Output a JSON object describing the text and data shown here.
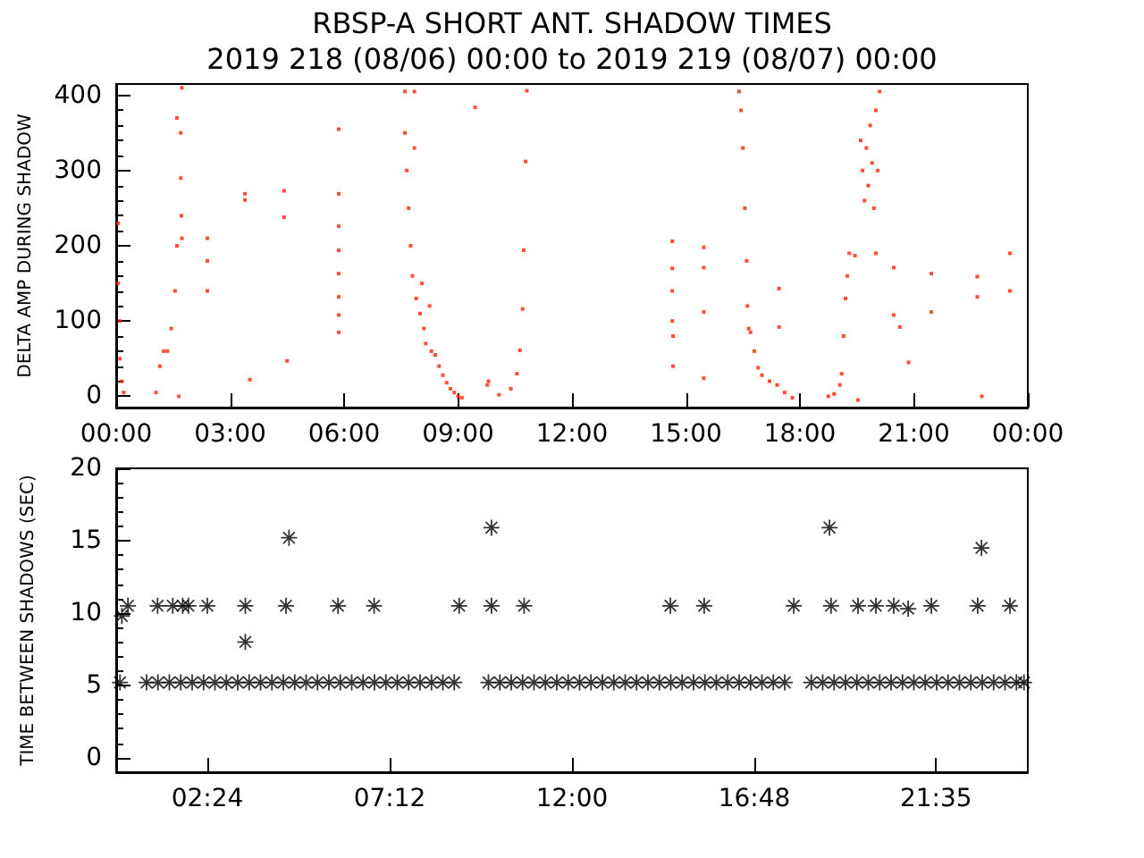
{
  "chart_data": [
    {
      "type": "scatter",
      "title": "RBSP-A SHORT ANT. SHADOW TIMES",
      "subtitle": "2019 218 (08/06) 00:00 to 2019 219 (08/07) 00:00",
      "ylabel": "DELTA AMP DURING SHADOW",
      "color": "#ff2200",
      "marker": "square",
      "grid": false,
      "xlim": [
        0,
        24
      ],
      "xticks": [
        {
          "value": 0,
          "label": "00:00"
        },
        {
          "value": 3,
          "label": "03:00"
        },
        {
          "value": 6,
          "label": "06:00"
        },
        {
          "value": 9,
          "label": "09:00"
        },
        {
          "value": 12,
          "label": "12:00"
        },
        {
          "value": 15,
          "label": "15:00"
        },
        {
          "value": 18,
          "label": "18:00"
        },
        {
          "value": 21,
          "label": "21:00"
        },
        {
          "value": 24,
          "label": "00:00"
        }
      ],
      "ylim": [
        -15,
        415
      ],
      "yticks": [
        0,
        100,
        200,
        300,
        400
      ],
      "x": [
        0.05,
        0.05,
        0.1,
        0.1,
        0.15,
        0.2,
        1.05,
        1.15,
        1.25,
        1.35,
        1.45,
        1.55,
        1.6,
        1.6,
        1.65,
        1.7,
        1.7,
        1.72,
        1.73,
        1.73,
        2.4,
        2.4,
        2.4,
        3.39,
        3.39,
        3.52,
        4.42,
        4.42,
        4.5,
        5.86,
        5.86,
        5.86,
        5.86,
        5.86,
        5.86,
        5.86,
        5.86,
        7.6,
        7.6,
        7.65,
        7.7,
        7.75,
        7.8,
        7.85,
        7.85,
        7.9,
        8.0,
        8.05,
        8.1,
        8.15,
        8.25,
        8.3,
        8.4,
        8.5,
        8.6,
        8.7,
        8.8,
        8.9,
        9.0,
        9.1,
        9.45,
        9.77,
        9.8,
        10.08,
        10.39,
        10.55,
        10.63,
        10.7,
        10.73,
        10.78,
        10.81,
        14.64,
        14.64,
        14.64,
        14.64,
        14.66,
        14.66,
        15.47,
        15.47,
        15.47,
        15.47,
        16.4,
        16.45,
        16.5,
        16.55,
        16.6,
        16.62,
        16.65,
        16.7,
        16.8,
        16.9,
        17.0,
        17.2,
        17.4,
        17.6,
        17.8,
        17.45,
        17.45,
        18.75,
        18.9,
        19.05,
        19.1,
        19.15,
        19.2,
        19.25,
        19.3,
        19.45,
        19.53,
        19.6,
        19.65,
        19.7,
        19.75,
        19.8,
        19.85,
        19.9,
        19.95,
        20.0,
        20.05,
        20.1,
        20.0,
        20.47,
        20.47,
        20.63,
        20.86,
        21.46,
        21.46,
        22.67,
        22.67,
        22.79,
        23.53,
        23.53
      ],
      "values": [
        150,
        230,
        100,
        50,
        20,
        5,
        5,
        40,
        60,
        60,
        90,
        140,
        200,
        370,
        0,
        350,
        290,
        240,
        410,
        210,
        210,
        180,
        140,
        269,
        261,
        22,
        273,
        238,
        47,
        355,
        269,
        226,
        194,
        163,
        132,
        108,
        85,
        405,
        350,
        300,
        250,
        200,
        160,
        405,
        330,
        130,
        110,
        150,
        90,
        70,
        120,
        60,
        55,
        40,
        28,
        18,
        10,
        5,
        0,
        -2,
        384,
        15,
        20,
        2,
        10,
        30,
        61,
        116,
        194,
        312,
        406,
        206,
        170,
        140,
        100,
        80,
        40,
        198,
        171,
        112,
        24,
        405,
        380,
        330,
        250,
        180,
        120,
        90,
        85,
        60,
        38,
        28,
        20,
        15,
        5,
        -2,
        143,
        92,
        0,
        3,
        15,
        30,
        80,
        130,
        160,
        190,
        187,
        -5,
        340,
        300,
        260,
        330,
        280,
        360,
        310,
        250,
        380,
        300,
        405,
        190,
        171,
        108,
        92,
        45,
        163,
        112,
        159,
        132,
        0,
        190,
        140
      ]
    },
    {
      "type": "scatter",
      "ylabel": "TIME BETWEEN SHADOWS (SEC)",
      "color": "#000000",
      "marker": "star",
      "grid": false,
      "xlim": [
        0,
        24
      ],
      "xticks": [
        {
          "value": 2.4,
          "label": "02:24"
        },
        {
          "value": 7.2,
          "label": "07:12"
        },
        {
          "value": 12,
          "label": "12:00"
        },
        {
          "value": 16.8,
          "label": "16:48"
        },
        {
          "value": 21.583,
          "label": "21:35"
        }
      ],
      "ylim": [
        -1,
        20
      ],
      "yticks": [
        0,
        5,
        10,
        15,
        20
      ],
      "x": [
        0.1,
        0.8,
        1.1,
        1.4,
        1.7,
        2,
        2.3,
        2.6,
        2.9,
        3.2,
        3.5,
        3.8,
        4.1,
        4.4,
        4.7,
        5,
        5.3,
        5.6,
        5.9,
        6.2,
        6.5,
        6.8,
        7.1,
        7.4,
        7.7,
        8,
        8.3,
        8.6,
        8.9,
        9.8,
        10.1,
        10.4,
        10.7,
        11,
        11.3,
        11.6,
        11.9,
        12.2,
        12.5,
        12.8,
        13.1,
        13.4,
        13.7,
        14,
        14.3,
        14.6,
        14.9,
        15.2,
        15.5,
        15.8,
        16.1,
        16.4,
        16.7,
        17,
        17.3,
        17.6,
        18.3,
        18.6,
        18.9,
        19.2,
        19.5,
        19.8,
        20.1,
        20.4,
        20.7,
        21,
        21.3,
        21.6,
        21.9,
        22.2,
        22.5,
        22.8,
        23.1,
        23.4,
        23.7,
        23.9,
        0.15,
        0.31,
        1.09,
        1.49,
        1.75,
        1.9,
        2.4,
        3.4,
        3.4,
        4.47,
        4.55,
        5.84,
        6.79,
        9.03,
        9.88,
        9.88,
        10.74,
        14.59,
        15.48,
        17.84,
        18.78,
        18.82,
        19.53,
        20.0,
        20.47,
        20.85,
        21.46,
        22.68,
        22.78,
        23.53
      ],
      "values": [
        5.2,
        5.2,
        5.2,
        5.2,
        5.2,
        5.2,
        5.2,
        5.2,
        5.2,
        5.2,
        5.2,
        5.2,
        5.2,
        5.2,
        5.2,
        5.2,
        5.2,
        5.2,
        5.2,
        5.2,
        5.2,
        5.2,
        5.2,
        5.2,
        5.2,
        5.2,
        5.2,
        5.2,
        5.2,
        5.2,
        5.2,
        5.2,
        5.2,
        5.2,
        5.2,
        5.2,
        5.2,
        5.2,
        5.2,
        5.2,
        5.2,
        5.2,
        5.2,
        5.2,
        5.2,
        5.2,
        5.2,
        5.2,
        5.2,
        5.2,
        5.2,
        5.2,
        5.2,
        5.2,
        5.2,
        5.2,
        5.2,
        5.2,
        5.2,
        5.2,
        5.2,
        5.2,
        5.2,
        5.2,
        5.2,
        5.2,
        5.2,
        5.2,
        5.2,
        5.2,
        5.2,
        5.2,
        5.2,
        5.2,
        5.2,
        5.2,
        9.8,
        10.5,
        10.5,
        10.5,
        10.5,
        10.5,
        10.5,
        10.5,
        8,
        10.5,
        15.2,
        10.5,
        10.5,
        10.5,
        10.5,
        15.9,
        10.5,
        10.5,
        10.5,
        10.5,
        15.9,
        10.5,
        10.5,
        10.5,
        10.5,
        10.3,
        10.5,
        10.5,
        14.5,
        10.5
      ]
    }
  ]
}
